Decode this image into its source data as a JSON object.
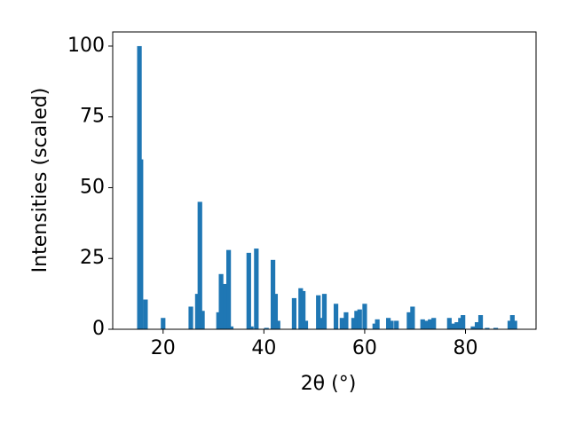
{
  "chart_data": {
    "type": "bar",
    "x_label": "2θ (°)",
    "y_label": "Intensities (scaled)",
    "x": [
      15.3,
      15.6,
      16.5,
      20,
      25.5,
      26.8,
      27.3,
      27.8,
      31,
      31.5,
      32.3,
      33,
      33.5,
      37,
      37.5,
      38.5,
      40.5,
      41.8,
      42.3,
      42.8,
      46,
      47.3,
      47.8,
      48.3,
      50.8,
      51.3,
      52,
      54.3,
      55.5,
      56.3,
      57.8,
      58.4,
      59,
      60,
      62,
      62.5,
      64.7,
      65.3,
      66.3,
      68.8,
      69.5,
      71.5,
      72.3,
      73,
      73.7,
      76.8,
      77.5,
      78.3,
      79,
      79.5,
      81.5,
      82.3,
      83,
      84.3,
      86,
      88.8,
      89.3,
      89.8
    ],
    "values": [
      100,
      60,
      10.5,
      4,
      8,
      12.5,
      45,
      6.5,
      6,
      19.5,
      16,
      28,
      1,
      27,
      1,
      28.5,
      0.5,
      24.5,
      12.5,
      3,
      11,
      14.5,
      13.5,
      3,
      12,
      4,
      12.5,
      9,
      4,
      6,
      4,
      6.5,
      7,
      9,
      2,
      3.5,
      4,
      3,
      3,
      6,
      8,
      3.5,
      3,
      3.5,
      4,
      4,
      2,
      2.5,
      4,
      5,
      1,
      2.5,
      5,
      0.5,
      0.5,
      3,
      5,
      3
    ],
    "color": "#1f77b4",
    "xlim": [
      10,
      94
    ],
    "ylim": [
      0,
      105
    ],
    "xticks": [
      20,
      40,
      60,
      80
    ],
    "yticks": [
      0,
      25,
      50,
      75,
      100
    ],
    "grid": false
  }
}
